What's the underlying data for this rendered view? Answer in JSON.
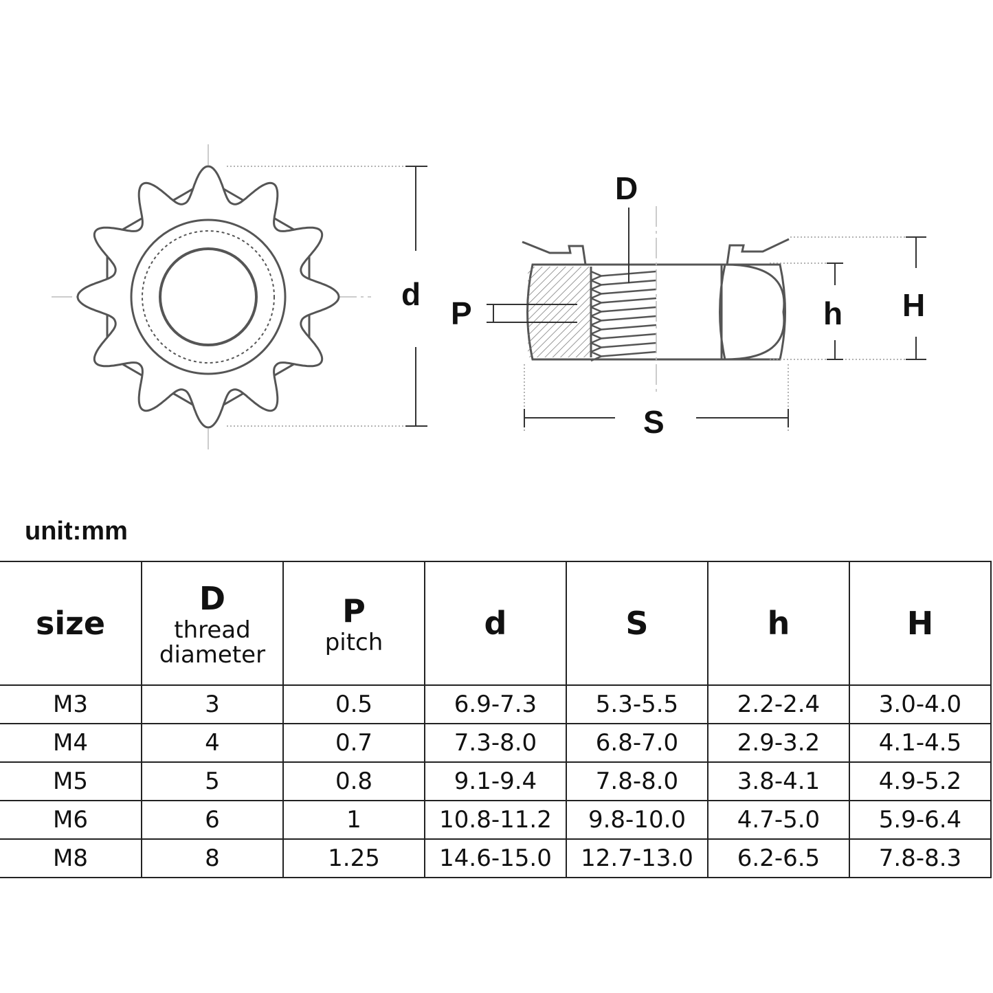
{
  "drawing": {
    "labels": {
      "d": "d",
      "D": "D",
      "P": "P",
      "h": "h",
      "H": "H",
      "S": "S"
    },
    "gear_teeth": 12,
    "line_color": "#555555"
  },
  "unit": "unit:mm",
  "table": {
    "headers": [
      {
        "symbol": "size",
        "desc1": "",
        "desc2": ""
      },
      {
        "symbol": "D",
        "desc1": "thread",
        "desc2": "diameter"
      },
      {
        "symbol": "P",
        "desc1": "pitch",
        "desc2": ""
      },
      {
        "symbol": "d",
        "desc1": "",
        "desc2": ""
      },
      {
        "symbol": "S",
        "desc1": "",
        "desc2": ""
      },
      {
        "symbol": "h",
        "desc1": "",
        "desc2": ""
      },
      {
        "symbol": "H",
        "desc1": "",
        "desc2": ""
      }
    ],
    "rows": [
      [
        "M3",
        "3",
        "0.5",
        "6.9-7.3",
        "5.3-5.5",
        "2.2-2.4",
        "3.0-4.0"
      ],
      [
        "M4",
        "4",
        "0.7",
        "7.3-8.0",
        "6.8-7.0",
        "2.9-3.2",
        "4.1-4.5"
      ],
      [
        "M5",
        "5",
        "0.8",
        "9.1-9.4",
        "7.8-8.0",
        "3.8-4.1",
        "4.9-5.2"
      ],
      [
        "M6",
        "6",
        "1",
        "10.8-11.2",
        "9.8-10.0",
        "4.7-5.0",
        "5.9-6.4"
      ],
      [
        "M8",
        "8",
        "1.25",
        "14.6-15.0",
        "12.7-13.0",
        "6.2-6.5",
        "7.8-8.3"
      ]
    ]
  }
}
